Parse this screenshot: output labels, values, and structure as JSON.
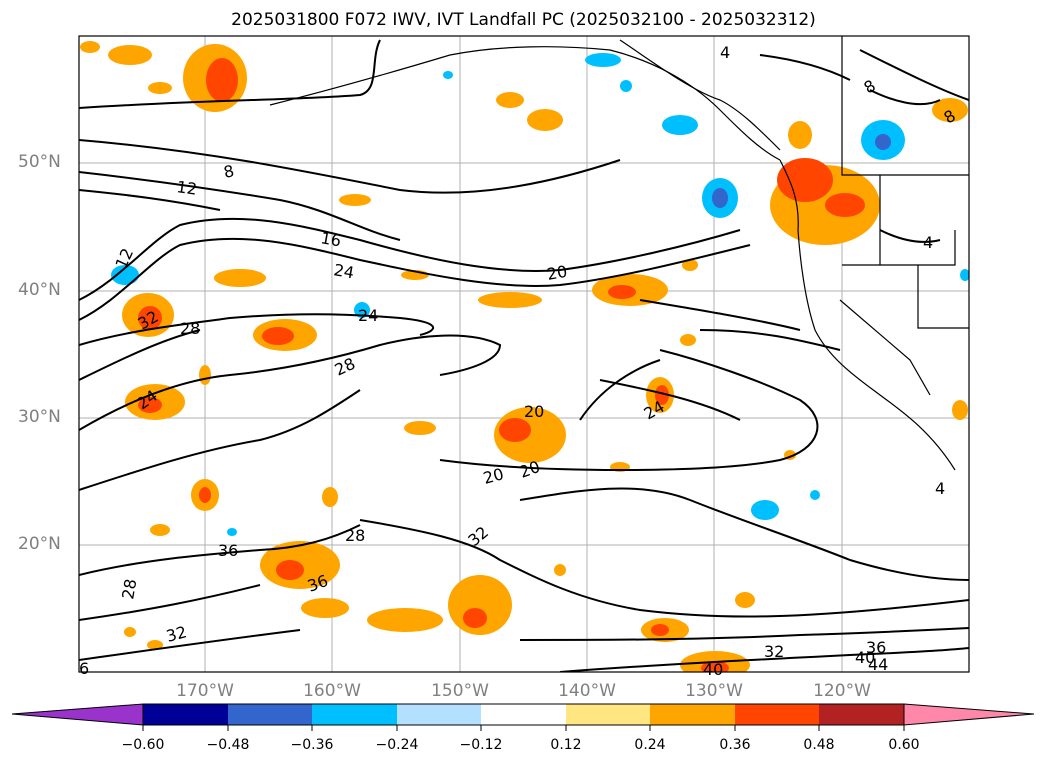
{
  "title": "2025031800 F072 IWV, IVT Landfall PC (2025032100 - 2025032312)",
  "latitude_labels": [
    "50°N",
    "40°N",
    "30°N",
    "20°N"
  ],
  "longitude_labels": [
    "170°W",
    "160°W",
    "150°W",
    "140°W",
    "130°W",
    "120°W"
  ],
  "colorbar": {
    "colors": [
      "#9933cc",
      "#000099",
      "#3366cc",
      "#00bfff",
      "#b3e0ff",
      "#ffffff",
      "#ffe680",
      "#ffa500",
      "#ff4500",
      "#b22222",
      "#ff88aa"
    ],
    "tick_labels": [
      "−0.60",
      "−0.48",
      "−0.36",
      "−0.24",
      "−0.12",
      "0.12",
      "0.24",
      "0.36",
      "0.48",
      "0.60"
    ]
  },
  "contour_labels": [
    "8",
    "12",
    "16",
    "24",
    "20",
    "24",
    "12",
    "32",
    "28",
    "28",
    "24",
    "20",
    "20",
    "20",
    "24",
    "28",
    "32",
    "36",
    "36",
    "28",
    "32",
    "32",
    "36",
    "40",
    "44",
    "40",
    "4",
    "4",
    "4",
    "8",
    "8",
    "6"
  ]
}
